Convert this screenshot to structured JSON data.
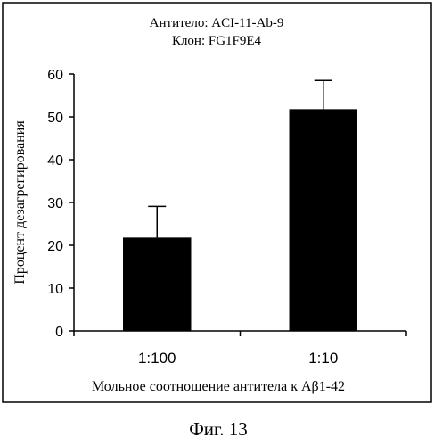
{
  "chart_data": {
    "type": "bar",
    "title_lines": [
      "Антитело: ACI-11-Ab-9",
      "Клон: FG1F9E4"
    ],
    "categories": [
      "1:100",
      "1:10"
    ],
    "values": [
      21.8,
      51.8
    ],
    "error_bars_upper": [
      7.3,
      6.7
    ],
    "xlabel": "Мольное соотношение антитела к Aβ1-42",
    "ylabel": "Процент дезагрегирования",
    "ylim": [
      0,
      60
    ],
    "yticks": [
      0,
      10,
      20,
      30,
      40,
      50,
      60
    ],
    "grid": false,
    "legend": "none",
    "bar_color": "#000000"
  },
  "figure_caption": "Фиг. 13"
}
